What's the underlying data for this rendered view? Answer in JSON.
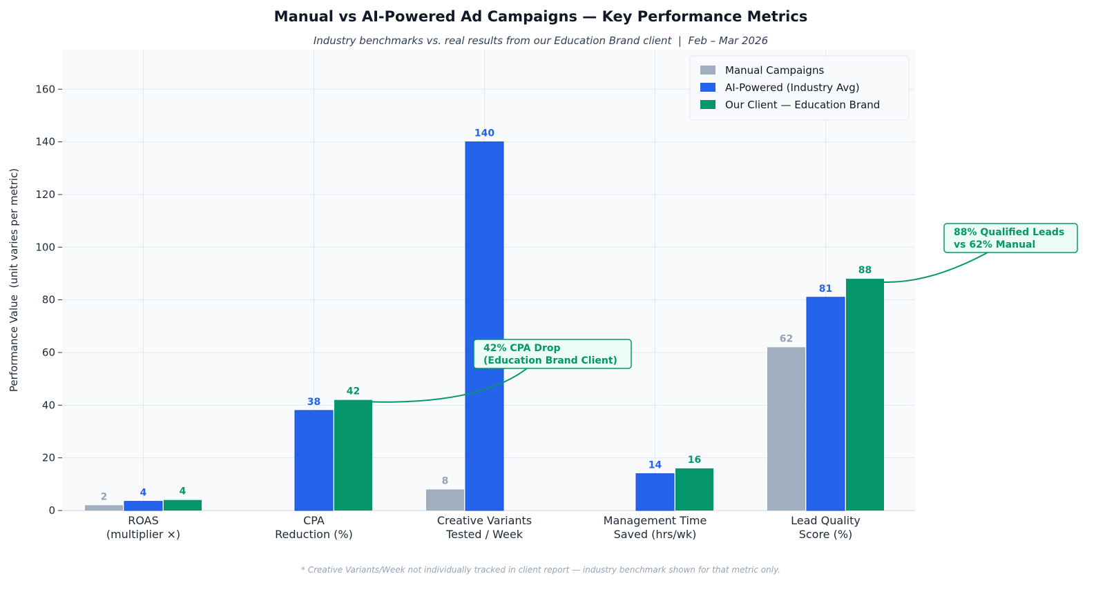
{
  "chart_data": {
    "type": "bar",
    "title": "Manual vs AI-Powered Ad Campaigns — Key Performance Metrics",
    "subtitle": "Industry benchmarks vs. real results from our Education Brand client  |  Feb – Mar 2026",
    "ylabel": "Performance Value  (unit varies per metric)",
    "xlabel": "",
    "ylim": [
      0,
      175
    ],
    "yticks": [
      0,
      20,
      40,
      60,
      80,
      100,
      120,
      140,
      160
    ],
    "grid": true,
    "legend_position": "top-right",
    "categories": [
      [
        "ROAS",
        "(multiplier ×)"
      ],
      [
        "CPA",
        "Reduction (%)"
      ],
      [
        "Creative Variants",
        "Tested / Week"
      ],
      [
        "Management Time",
        "Saved (hrs/wk)"
      ],
      [
        "Lead Quality",
        "Score (%)"
      ]
    ],
    "series": [
      {
        "name": "Manual Campaigns",
        "color": "#a0aec0",
        "values": [
          2,
          null,
          8,
          null,
          62
        ],
        "labels": [
          "2",
          "",
          "8",
          "",
          "62"
        ]
      },
      {
        "name": "AI-Powered (Industry Avg)",
        "color": "#2563eb",
        "values": [
          3.5,
          38,
          140,
          14,
          81
        ],
        "labels": [
          "4",
          "38",
          "140",
          "14",
          "81"
        ]
      },
      {
        "name": "Our Client — Education Brand",
        "color": "#059669",
        "values": [
          4,
          42,
          null,
          16,
          88
        ],
        "labels": [
          "4",
          "42",
          "",
          "16",
          "88"
        ]
      }
    ],
    "annotations": [
      {
        "lines": [
          "42% CPA Drop",
          "(Education Brand Client)"
        ],
        "target_category": 1,
        "target_series": 2
      },
      {
        "lines": [
          "88% Qualified Leads",
          "vs 62% Manual"
        ],
        "target_category": 4,
        "target_series": 2
      }
    ],
    "footnote": "* Creative Variants/Week not individually tracked in client report — industry benchmark shown for that metric only."
  }
}
